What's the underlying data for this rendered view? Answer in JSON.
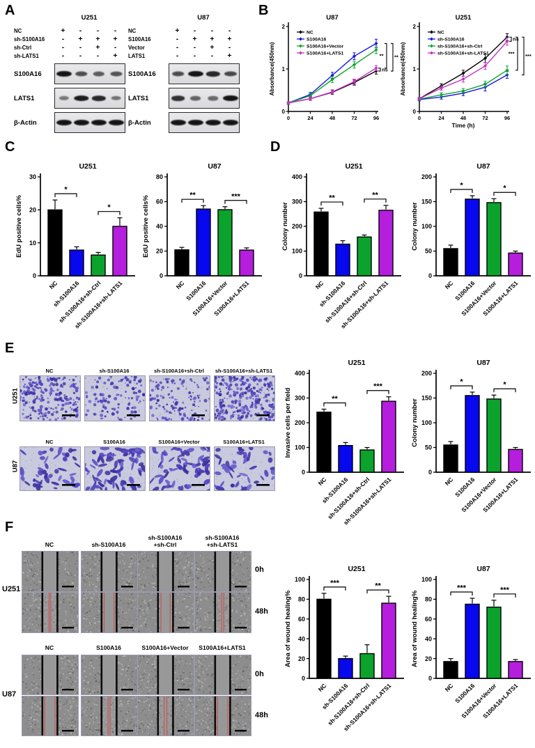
{
  "colors": {
    "bar": [
      "#000000",
      "#0808EE",
      "#0BA32C",
      "#B41EDC"
    ],
    "line": [
      "#000000",
      "#1616E0",
      "#0BA32C",
      "#C433C4"
    ],
    "error_bar": "#000000",
    "wound_line": "#0a0a0a",
    "wound_red_line": "#d04848",
    "stain_purple": "#4a3ab5"
  },
  "panels": {
    "A": {
      "letter": "A",
      "groups": [
        {
          "title": "U251",
          "conditions": [
            {
              "name": "NC",
              "signs": [
                "+",
                "-",
                "-",
                "-"
              ]
            },
            {
              "name": "sh-S100A16",
              "signs": [
                "-",
                "+",
                "+",
                "+"
              ]
            },
            {
              "name": "sh-Ctrl",
              "signs": [
                "-",
                "-",
                "+",
                "-"
              ]
            },
            {
              "name": "sh-LATS1",
              "signs": [
                "-",
                "-",
                "-",
                "+"
              ]
            }
          ],
          "blots": [
            {
              "label": "S100A16",
              "bands": [
                1.0,
                0.6,
                0.5,
                0.55
              ]
            },
            {
              "label": "LATS1",
              "bands": [
                0.3,
                0.95,
                0.85,
                0.35
              ]
            },
            {
              "label": "β-Actin",
              "bands": [
                1,
                1,
                1,
                1
              ]
            }
          ]
        },
        {
          "title": "U87",
          "conditions": [
            {
              "name": "NC",
              "signs": [
                "+",
                "-",
                "-",
                "-"
              ]
            },
            {
              "name": "S100A16",
              "signs": [
                "-",
                "+",
                "+",
                "+"
              ]
            },
            {
              "name": "Vector",
              "signs": [
                "-",
                "-",
                "+",
                "-"
              ]
            },
            {
              "name": "LATS1",
              "signs": [
                "-",
                "-",
                "-",
                "+"
              ]
            }
          ],
          "blots": [
            {
              "label": "S100A16",
              "bands": [
                0.6,
                1.0,
                0.85,
                0.65
              ]
            },
            {
              "label": "LATS1",
              "bands": [
                0.8,
                0.45,
                0.4,
                1.0
              ]
            },
            {
              "label": "β-Actin",
              "bands": [
                1,
                1,
                1,
                1
              ]
            }
          ]
        }
      ]
    },
    "B": {
      "letter": "B"
    },
    "C": {
      "letter": "C"
    },
    "D": {
      "letter": "D"
    },
    "E": {
      "letter": "E",
      "rows": [
        {
          "cell_line": "U251",
          "stain_type": "dots",
          "titles": [
            "NC",
            "sh-S100A16",
            "sh-S100A16+sh-Ctrl",
            "sh-S100A16+sh-LATS1"
          ],
          "densities": [
            230,
            120,
            130,
            290
          ]
        },
        {
          "cell_line": "U87",
          "stain_type": "blobs",
          "titles": [
            "NC",
            "S100A16",
            "S100A16+Vector",
            "S100A16+LATS1"
          ],
          "densities": [
            44,
            78,
            70,
            48
          ]
        }
      ]
    },
    "F": {
      "letter": "F",
      "blocks": [
        {
          "cell_line": "U251",
          "col_titles": [
            [
              "NC"
            ],
            [
              "sh-S100A16"
            ],
            [
              "sh-S100A16",
              "+sh-Ctrl"
            ],
            [
              "sh-S100A16",
              "+sh-LATS1"
            ]
          ],
          "times": [
            "0h",
            "48h"
          ],
          "healing_48h": [
            0.75,
            0.2,
            0.25,
            0.72
          ]
        },
        {
          "cell_line": "U87",
          "col_titles": [
            [
              "NC"
            ],
            [
              "S100A16"
            ],
            [
              "S100A16+Vector"
            ],
            [
              "S100A16+LATS1"
            ]
          ],
          "times": [
            "0h",
            "48h"
          ],
          "healing_48h": [
            0.17,
            0.72,
            0.68,
            0.17
          ]
        }
      ]
    }
  },
  "chart_data": [
    {
      "id": "b_u87",
      "type": "line",
      "title": "U87",
      "xlabel": "",
      "ylabel": "Absorbance(450nm)",
      "x": [
        0,
        24,
        48,
        72,
        96
      ],
      "xticks": [
        0,
        24,
        48,
        72,
        96
      ],
      "ylim": [
        0,
        2
      ],
      "yticks": [
        0,
        1,
        2
      ],
      "legend_position": "top-left",
      "grid": false,
      "series": [
        {
          "name": "NC",
          "color": "#000000",
          "values": [
            0.2,
            0.3,
            0.45,
            0.68,
            0.95
          ],
          "errors": [
            0.03,
            0.04,
            0.05,
            0.06,
            0.07
          ]
        },
        {
          "name": "S100A16",
          "color": "#1616E0",
          "values": [
            0.2,
            0.4,
            0.85,
            1.3,
            1.6
          ],
          "errors": [
            0.03,
            0.05,
            0.07,
            0.08,
            0.1
          ]
        },
        {
          "name": "S100A16+Vector",
          "color": "#0BA32C",
          "values": [
            0.2,
            0.37,
            0.75,
            1.1,
            1.45
          ],
          "errors": [
            0.03,
            0.05,
            0.07,
            0.08,
            0.09
          ]
        },
        {
          "name": "S100A16+LATS1",
          "color": "#C433C4",
          "values": [
            0.2,
            0.3,
            0.46,
            0.7,
            1.02
          ],
          "errors": [
            0.03,
            0.04,
            0.05,
            0.06,
            0.06
          ]
        }
      ],
      "annotations": [
        {
          "label": "ns",
          "a": 3,
          "b": 0,
          "off": 0,
          "side": "r"
        },
        {
          "label": "**",
          "a": 1,
          "b": 3,
          "off": 1,
          "side": "l"
        },
        {
          "label": "**",
          "a": 1,
          "b": 0,
          "off": 2,
          "side": "r"
        }
      ]
    },
    {
      "id": "b_u251",
      "type": "line",
      "title": "U251",
      "xlabel": "Time (h)",
      "ylabel": "Absorbance(450nm)",
      "x": [
        0,
        24,
        48,
        72,
        96
      ],
      "xticks": [
        0,
        24,
        48,
        72,
        96
      ],
      "ylim": [
        0,
        2
      ],
      "yticks": [
        0,
        1,
        2
      ],
      "legend_position": "top-left",
      "grid": false,
      "series": [
        {
          "name": "NC",
          "color": "#000000",
          "values": [
            0.3,
            0.6,
            0.9,
            1.25,
            1.75
          ],
          "errors": [
            0.03,
            0.05,
            0.07,
            0.1,
            0.08
          ]
        },
        {
          "name": "sh-S100A16",
          "color": "#1616E0",
          "values": [
            0.28,
            0.34,
            0.43,
            0.57,
            0.86
          ],
          "errors": [
            0.03,
            0.05,
            0.06,
            0.09,
            0.08
          ]
        },
        {
          "name": "sh-S100A16+sh-Ctrl",
          "color": "#0BA32C",
          "values": [
            0.29,
            0.39,
            0.48,
            0.64,
            0.97
          ],
          "errors": [
            0.03,
            0.05,
            0.06,
            0.07,
            0.1
          ]
        },
        {
          "name": "sh-S100A16+sh-LATS1",
          "color": "#C433C4",
          "values": [
            0.3,
            0.55,
            0.76,
            1.07,
            1.65
          ],
          "errors": [
            0.03,
            0.05,
            0.07,
            0.08,
            0.09
          ]
        }
      ],
      "annotations": [
        {
          "label": "ns",
          "a": 0,
          "b": 3,
          "off": 0,
          "side": "r"
        },
        {
          "label": "***",
          "a": 0,
          "b": 2,
          "off": 1,
          "side": "l"
        },
        {
          "label": "***",
          "a": 0,
          "b": 1,
          "off": 2,
          "side": "r"
        }
      ]
    },
    {
      "id": "c_u251",
      "type": "bar",
      "title": "U251",
      "ylabel": "EdU positive cells%",
      "categories": [
        "NC",
        "sh-S100A16",
        "sh-S100A16+sh-Ctrl",
        "sh-S100A16+sh-LATS1"
      ],
      "values": [
        20,
        7.8,
        6.3,
        15
      ],
      "errors": [
        3,
        1,
        0.8,
        2.6
      ],
      "ylim": [
        0,
        30
      ],
      "yticks": [
        0,
        10,
        20,
        30
      ],
      "sig": [
        {
          "a": 0,
          "b": 1,
          "label": "*"
        },
        {
          "a": 2,
          "b": 3,
          "label": "*"
        }
      ]
    },
    {
      "id": "c_u87",
      "type": "bar",
      "title": "U87",
      "ylabel": "EdU positive cells%",
      "categories": [
        "NC",
        "S100A16",
        "S100A16+Vector",
        "S100A16+LATS1"
      ],
      "values": [
        21,
        54,
        53.5,
        20.8
      ],
      "errors": [
        2,
        2.8,
        2.4,
        1.8
      ],
      "ylim": [
        0,
        80
      ],
      "yticks": [
        0,
        20,
        40,
        60,
        80
      ],
      "sig": [
        {
          "a": 0,
          "b": 1,
          "label": "**"
        },
        {
          "a": 2,
          "b": 3,
          "label": "***"
        }
      ]
    },
    {
      "id": "d_u251",
      "type": "bar",
      "title": "U251",
      "ylabel": "Colony number",
      "categories": [
        "NC",
        "sh-S100A16",
        "sh-S100A16+sh-Ctrl",
        "sh-S100A16+sh-LATS1"
      ],
      "values": [
        258,
        128,
        157,
        265
      ],
      "errors": [
        15,
        14,
        8,
        20
      ],
      "ylim": [
        0,
        400
      ],
      "yticks": [
        0,
        100,
        200,
        300,
        400
      ],
      "sig": [
        {
          "a": 0,
          "b": 1,
          "label": "**"
        },
        {
          "a": 2,
          "b": 3,
          "label": "**"
        }
      ]
    },
    {
      "id": "d_u87",
      "type": "bar",
      "title": "U87",
      "ylabel": "Colony number",
      "categories": [
        "NC",
        "S100A16",
        "S100A16+Vector",
        "S100A16+LATS1"
      ],
      "values": [
        55,
        155,
        148,
        46
      ],
      "errors": [
        7,
        7,
        8,
        4
      ],
      "ylim": [
        0,
        200
      ],
      "yticks": [
        0,
        50,
        100,
        150,
        200
      ],
      "sig": [
        {
          "a": 0,
          "b": 1,
          "label": "*"
        },
        {
          "a": 2,
          "b": 3,
          "label": "*"
        }
      ]
    },
    {
      "id": "e_u251",
      "type": "bar",
      "title": "U251",
      "ylabel": "Invasive cells per field",
      "categories": [
        "NC",
        "sh-S100A16",
        "sh-S100A16+sh-Ctrl",
        "sh-S100A16+sh-LATS1"
      ],
      "values": [
        243,
        108,
        90,
        287
      ],
      "errors": [
        12,
        12,
        10,
        18
      ],
      "ylim": [
        0,
        400
      ],
      "yticks": [
        0,
        100,
        200,
        300,
        400
      ],
      "sig": [
        {
          "a": 0,
          "b": 1,
          "label": "**"
        },
        {
          "a": 2,
          "b": 3,
          "label": "***"
        }
      ]
    },
    {
      "id": "e_u87",
      "type": "bar",
      "title": "U87",
      "ylabel": "Colony number",
      "categories": [
        "NC",
        "S100A16",
        "S100A16+Vector",
        "S100A16+LATS1"
      ],
      "values": [
        55,
        155,
        148,
        46
      ],
      "errors": [
        7,
        7,
        8,
        4
      ],
      "ylim": [
        0,
        200
      ],
      "yticks": [
        0,
        50,
        100,
        150,
        200
      ],
      "sig": [
        {
          "a": 0,
          "b": 1,
          "label": "*"
        },
        {
          "a": 2,
          "b": 3,
          "label": "*"
        }
      ]
    },
    {
      "id": "f_u251",
      "type": "bar",
      "title": "U251",
      "ylabel": "Area of wound healing%",
      "categories": [
        "NC",
        "sh-S100A16",
        "sh-S100A16+sh-Ctrl",
        "sh-S100A16+sh-LATS1"
      ],
      "values": [
        80,
        20,
        25,
        76
      ],
      "errors": [
        6,
        2.5,
        9,
        7
      ],
      "ylim": [
        0,
        100
      ],
      "yticks": [
        0,
        20,
        40,
        60,
        80,
        100
      ],
      "sig": [
        {
          "a": 0,
          "b": 1,
          "label": "***"
        },
        {
          "a": 2,
          "b": 3,
          "label": "**"
        }
      ]
    },
    {
      "id": "f_u87",
      "type": "bar",
      "title": "U87",
      "ylabel": "Area of wound healing%",
      "categories": [
        "NC",
        "S100A16",
        "S100A16+Vector",
        "S100A16+LATS1"
      ],
      "values": [
        17,
        75,
        72,
        17
      ],
      "errors": [
        3,
        6,
        7,
        2
      ],
      "ylim": [
        0,
        100
      ],
      "yticks": [
        0,
        20,
        40,
        60,
        80,
        100
      ],
      "sig": [
        {
          "a": 0,
          "b": 1,
          "label": "***"
        },
        {
          "a": 2,
          "b": 3,
          "label": "***"
        }
      ]
    }
  ]
}
